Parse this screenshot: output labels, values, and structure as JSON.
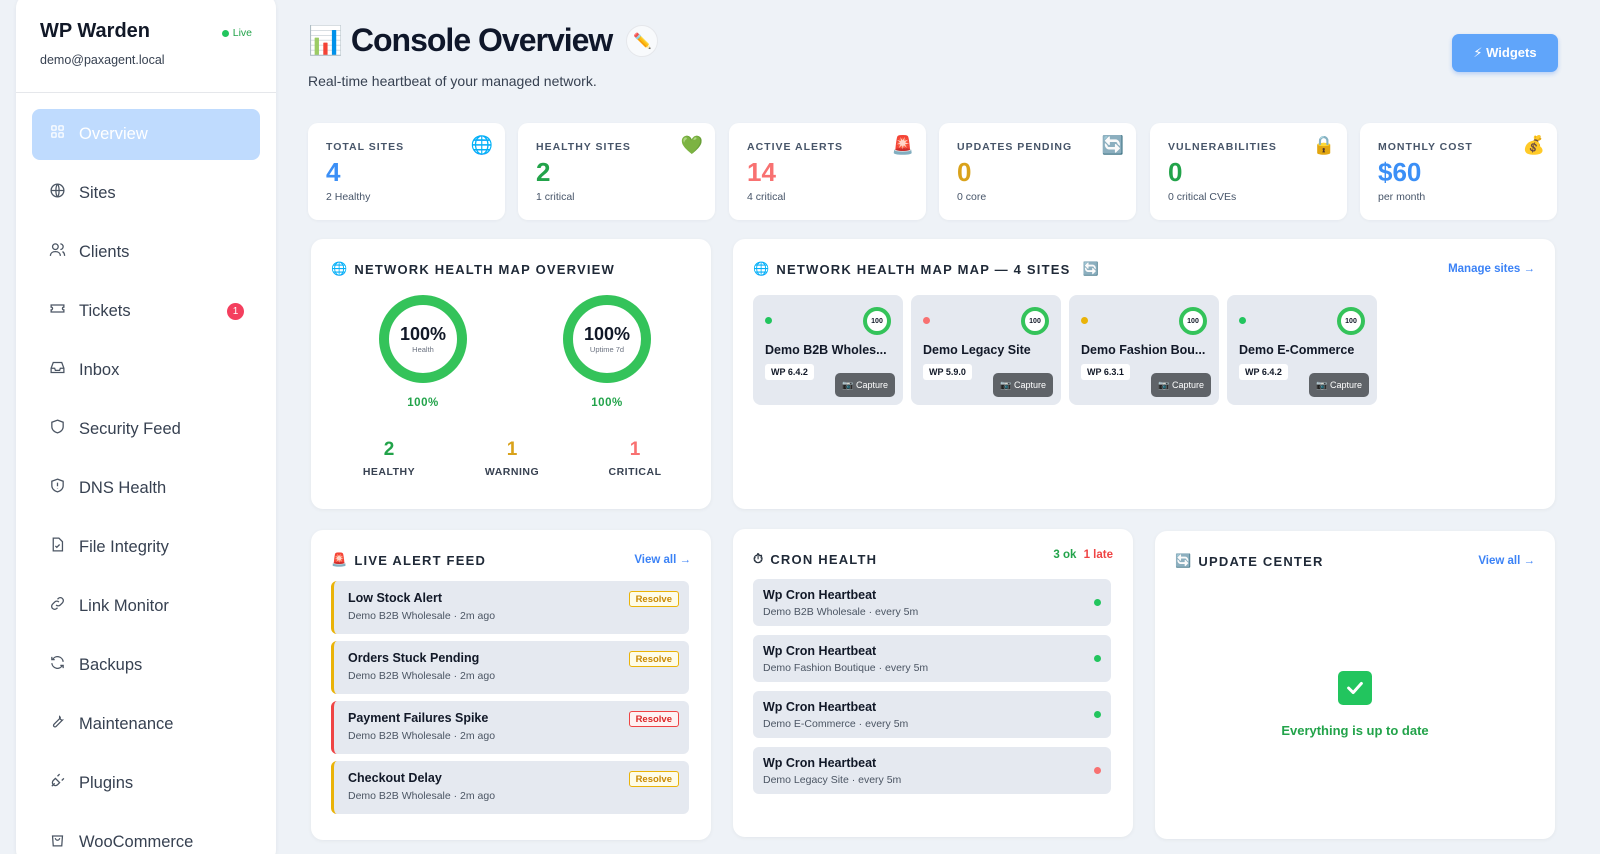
{
  "sidebar": {
    "brand": "WP Warden",
    "email": "demo@paxagent.local",
    "status": "Live",
    "items": [
      {
        "label": "Overview",
        "icon": "grid-icon"
      },
      {
        "label": "Sites",
        "icon": "globe-icon"
      },
      {
        "label": "Clients",
        "icon": "users-icon"
      },
      {
        "label": "Tickets",
        "icon": "ticket-icon",
        "badge": "1"
      },
      {
        "label": "Inbox",
        "icon": "inbox-icon"
      },
      {
        "label": "Security Feed",
        "icon": "shield-icon"
      },
      {
        "label": "DNS Health",
        "icon": "shield-alert-icon"
      },
      {
        "label": "File Integrity",
        "icon": "file-check-icon"
      },
      {
        "label": "Link Monitor",
        "icon": "link-icon"
      },
      {
        "label": "Backups",
        "icon": "refresh-icon"
      },
      {
        "label": "Maintenance",
        "icon": "wrench-icon"
      },
      {
        "label": "Plugins",
        "icon": "plug-icon"
      },
      {
        "label": "WooCommerce",
        "icon": "shopping-bag-icon"
      }
    ]
  },
  "header": {
    "emoji": "📊",
    "title": "Console Overview",
    "edit_emoji": "✏️",
    "subtitle": "Real-time heartbeat of your managed network.",
    "widgets_label": "⚡ Widgets"
  },
  "stats": [
    {
      "label": "TOTAL SITES",
      "value": "4",
      "sub": "2 Healthy",
      "icon": "🌐",
      "color": "#3b8ff6"
    },
    {
      "label": "HEALTHY SITES",
      "value": "2",
      "sub": "1 critical",
      "icon": "💚",
      "color": "#22a34a"
    },
    {
      "label": "ACTIVE ALERTS",
      "value": "14",
      "sub": "4 critical",
      "icon": "🚨",
      "color": "#f87171"
    },
    {
      "label": "UPDATES PENDING",
      "value": "0",
      "sub": "0 core",
      "icon": "🔄",
      "color": "#d9a21b"
    },
    {
      "label": "VULNERABILITIES",
      "value": "0",
      "sub": "0 critical CVEs",
      "icon": "🔒",
      "color": "#22a34a"
    },
    {
      "label": "MONTHLY COST",
      "value": "$60",
      "sub": "per month",
      "icon": "💰",
      "color": "#3b8ff6"
    }
  ],
  "health": {
    "title": "NETWORK HEALTH MAP OVERVIEW",
    "icon": "🌐",
    "rings": [
      {
        "value": "100%",
        "label": "Health",
        "below": "100%"
      },
      {
        "value": "100%",
        "label": "Uptime 7d",
        "below": "100%"
      }
    ],
    "counts": [
      {
        "value": "2",
        "label": "HEALTHY",
        "color": "#22a34a"
      },
      {
        "value": "1",
        "label": "WARNING",
        "color": "#d9a21b"
      },
      {
        "value": "1",
        "label": "CRITICAL",
        "color": "#f87171"
      }
    ]
  },
  "map": {
    "title": "NETWORK HEALTH MAP MAP — 4 SITES",
    "icon": "🌐",
    "refresh_icon": "🔄",
    "link": "Manage sites →",
    "sites": [
      {
        "name": "Demo B2B Wholes...",
        "wp": "WP 6.4.2",
        "score": "100",
        "status": "#22c55e",
        "capture": "📷 Capture"
      },
      {
        "name": "Demo Legacy Site",
        "wp": "WP 5.9.0",
        "score": "100",
        "status": "#f87171",
        "capture": "📷 Capture"
      },
      {
        "name": "Demo Fashion Bou...",
        "wp": "WP 6.3.1",
        "score": "100",
        "status": "#eab308",
        "capture": "📷 Capture"
      },
      {
        "name": "Demo E-Commerce",
        "wp": "WP 6.4.2",
        "score": "100",
        "status": "#22c55e",
        "capture": "📷 Capture"
      }
    ]
  },
  "alerts": {
    "title": "LIVE ALERT FEED",
    "icon": "🚨",
    "link": "View all →",
    "items": [
      {
        "title": "Low Stock Alert",
        "meta": "Demo B2B Wholesale · 2m ago",
        "action": "Resolve",
        "severity": "warning"
      },
      {
        "title": "Orders Stuck Pending",
        "meta": "Demo B2B Wholesale · 2m ago",
        "action": "Resolve",
        "severity": "warning"
      },
      {
        "title": "Payment Failures Spike",
        "meta": "Demo B2B Wholesale · 2m ago",
        "action": "Resolve",
        "severity": "critical"
      },
      {
        "title": "Checkout Delay",
        "meta": "Demo B2B Wholesale · 2m ago",
        "action": "Resolve",
        "severity": "warning"
      }
    ]
  },
  "cron": {
    "title": "CRON HEALTH",
    "icon": "⏱",
    "ok": "3 ok",
    "late": "1 late",
    "items": [
      {
        "title": "Wp Cron Heartbeat",
        "meta": "Demo B2B Wholesale · every 5m",
        "status": "#22c55e"
      },
      {
        "title": "Wp Cron Heartbeat",
        "meta": "Demo Fashion Boutique · every 5m",
        "status": "#22c55e"
      },
      {
        "title": "Wp Cron Heartbeat",
        "meta": "Demo E-Commerce · every 5m",
        "status": "#22c55e"
      },
      {
        "title": "Wp Cron Heartbeat",
        "meta": "Demo Legacy Site · every 5m",
        "status": "#f87171"
      }
    ]
  },
  "updates": {
    "title": "UPDATE CENTER",
    "icon": "🔄",
    "link": "View all →",
    "message": "Everything is up to date"
  }
}
